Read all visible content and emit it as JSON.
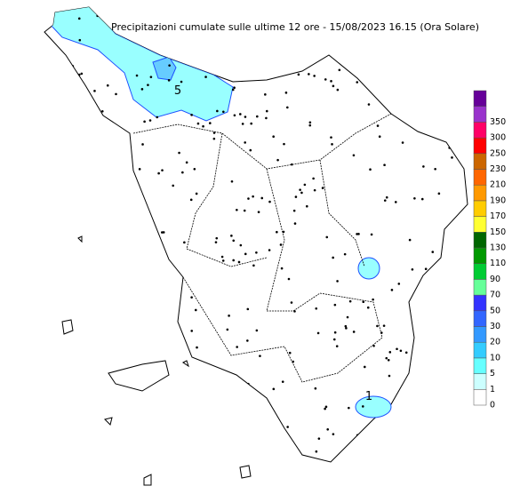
{
  "title": "Precipitazioni cumulate sulle ultime 12 ore - 15/08/2023 16.15 (Ora Solare)",
  "contour_labels": [
    "5",
    "1"
  ],
  "legend": {
    "ticks": [
      0,
      1,
      5,
      10,
      20,
      30,
      50,
      70,
      90,
      110,
      130,
      150,
      170,
      190,
      210,
      230,
      250,
      300,
      350
    ],
    "colors": [
      "#ffffff",
      "#ccffff",
      "#66ffff",
      "#33ccff",
      "#3399ff",
      "#3366ff",
      "#3333ff",
      "#66ff99",
      "#00cc33",
      "#009900",
      "#006600",
      "#ffff33",
      "#ffcc00",
      "#ff9900",
      "#ff6600",
      "#cc6600",
      "#ff0000",
      "#ff0066",
      "#9933cc",
      "#660099"
    ]
  }
}
